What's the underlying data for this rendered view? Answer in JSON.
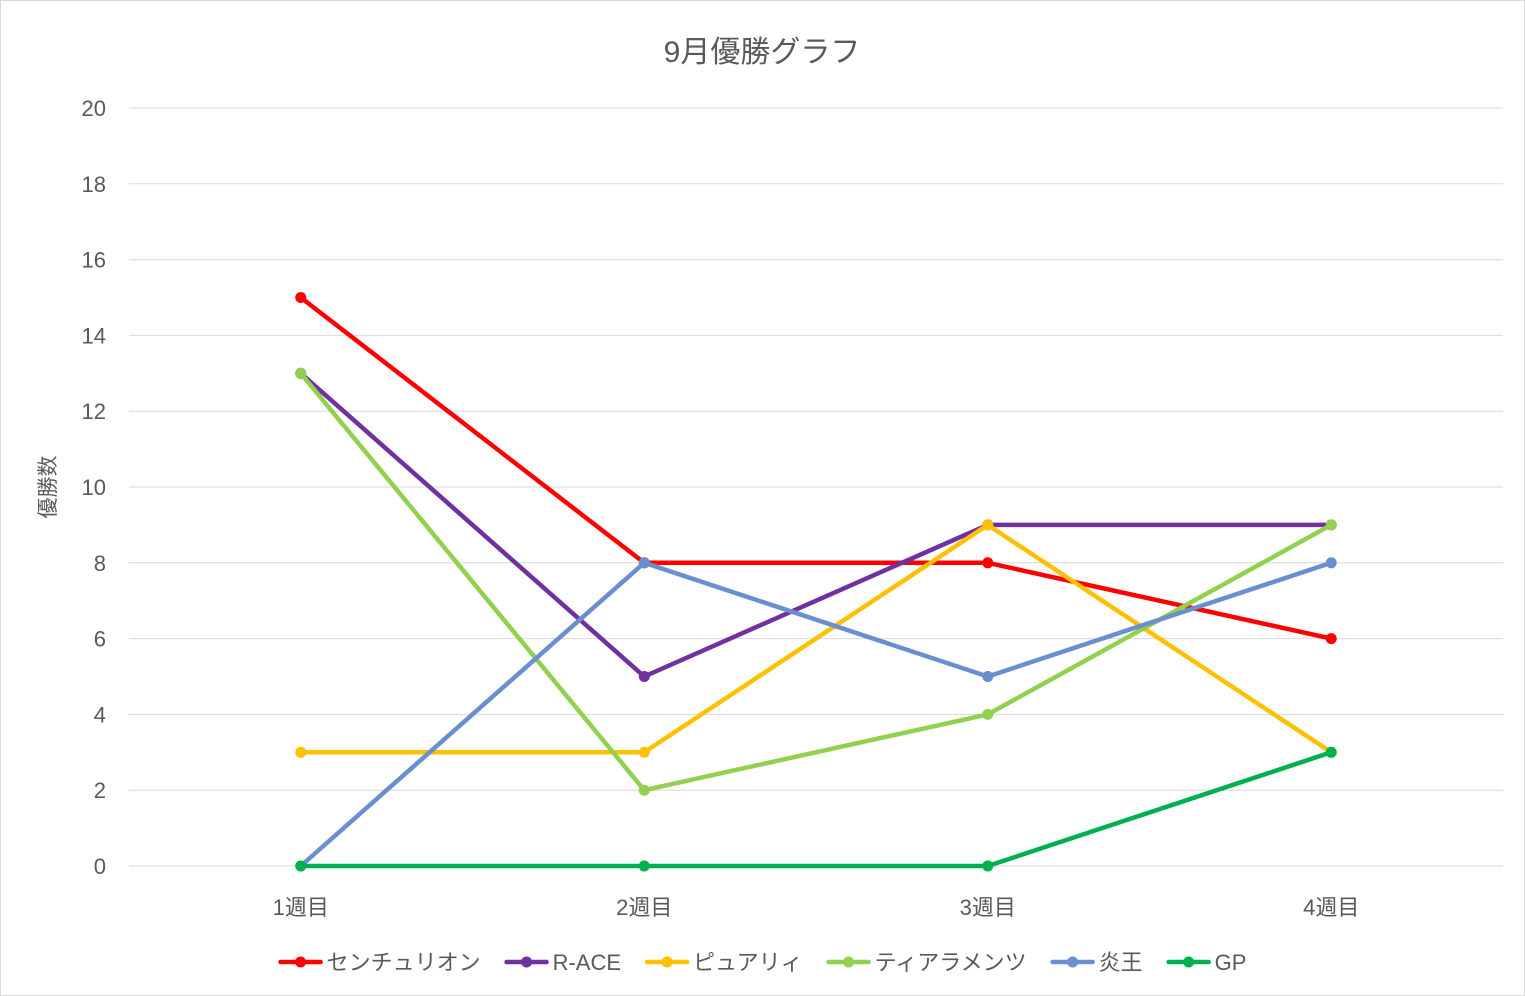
{
  "chart_data": {
    "type": "line",
    "title": "9月優勝グラフ",
    "xlabel": "",
    "ylabel": "優勝数",
    "categories": [
      "1週目",
      "2週目",
      "3週目",
      "4週目"
    ],
    "ylim": [
      0,
      20
    ],
    "yticks": [
      0,
      2,
      4,
      6,
      8,
      10,
      12,
      14,
      16,
      18,
      20
    ],
    "grid": true,
    "legend_position": "bottom",
    "series": [
      {
        "name": "センチュリオン",
        "values": [
          15,
          8,
          8,
          6
        ],
        "color": "#ff0000"
      },
      {
        "name": "R-ACE",
        "values": [
          13,
          5,
          9,
          9
        ],
        "color": "#7030a0"
      },
      {
        "name": "ピュアリィ",
        "values": [
          3,
          3,
          9,
          3
        ],
        "color": "#ffc000"
      },
      {
        "name": "ティアラメンツ",
        "values": [
          13,
          2,
          4,
          9
        ],
        "color": "#92d050"
      },
      {
        "name": "炎王",
        "values": [
          0,
          8,
          5,
          8
        ],
        "color": "#6a8fd0"
      },
      {
        "name": "GP",
        "values": [
          0,
          0,
          0,
          3
        ],
        "color": "#00b050"
      }
    ]
  }
}
